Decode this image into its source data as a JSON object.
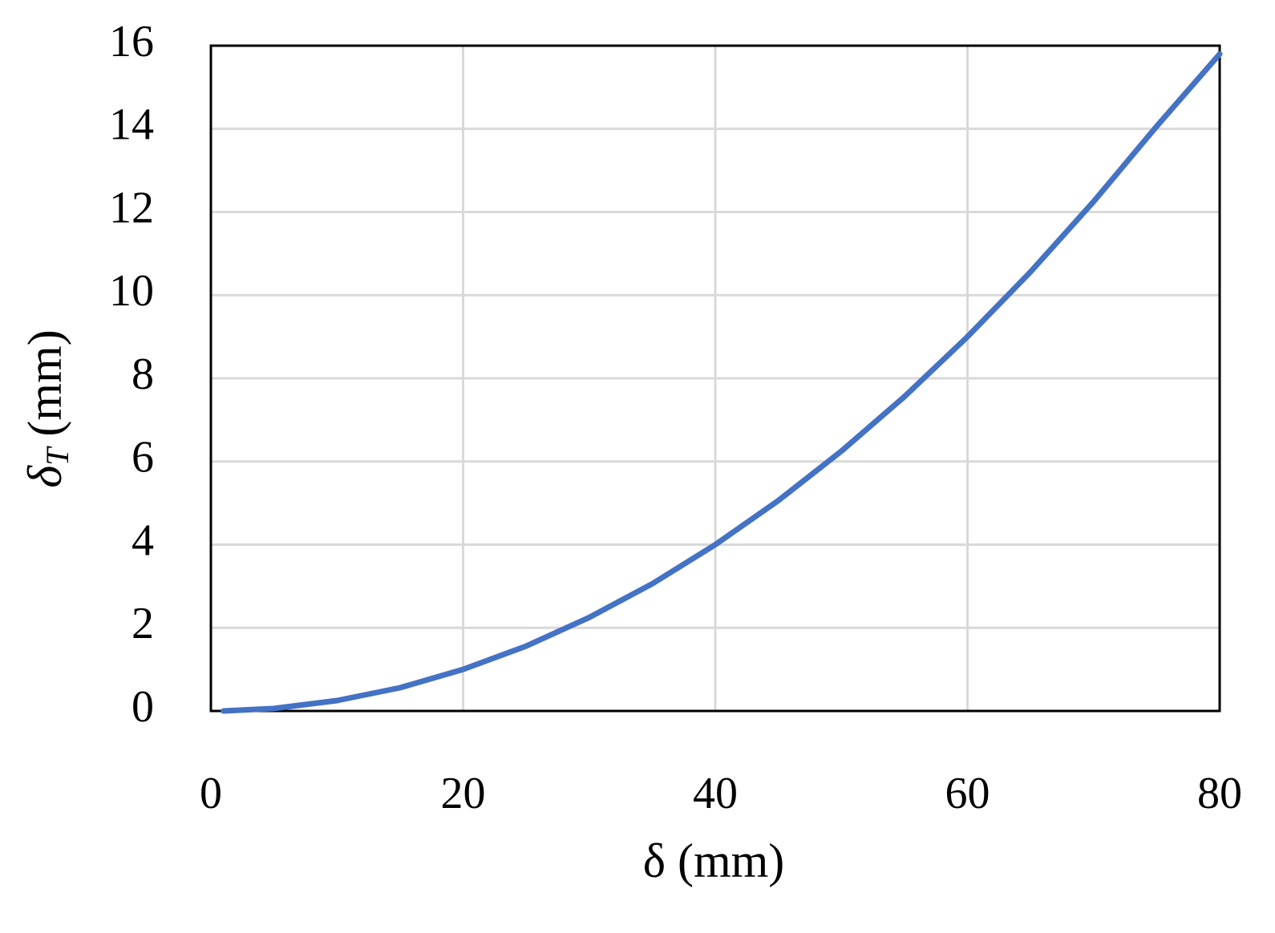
{
  "chart_data": {
    "type": "line",
    "xlabel": "δ (mm)",
    "ylabel": [
      "δ",
      "T",
      "(mm)"
    ],
    "x": [
      1,
      5,
      10,
      15,
      20,
      25,
      30,
      35,
      40,
      45,
      50,
      55,
      60,
      65,
      70,
      75,
      80
    ],
    "values": [
      0,
      0.06,
      0.25,
      0.56,
      1,
      1.56,
      2.25,
      3.06,
      4,
      5.06,
      6.25,
      7.56,
      9,
      10.56,
      12.25,
      14.06,
      15.8
    ],
    "color": "#4472c4",
    "xlim": [
      0,
      80
    ],
    "xticks": [
      0,
      20,
      40,
      60,
      80
    ],
    "ylim": [
      0,
      16
    ],
    "yticks": [
      0,
      2,
      4,
      6,
      8,
      10,
      12,
      14,
      16
    ],
    "grid": true
  }
}
